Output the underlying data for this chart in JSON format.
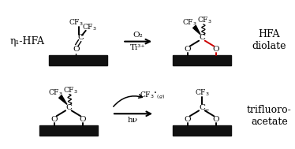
{
  "bg_color": "#ffffff",
  "black_surface_color": "#111111",
  "label_eta1_hfa": "η₁-HFA",
  "label_hfa_diolate": "HFA\ndiolate",
  "label_trifluoro": "trifluoro-\nacetate",
  "arrow1_label_top": "O₂",
  "arrow1_label_bot": "Ti³⁺",
  "arrow2_label_bot": "hν",
  "red_color": "#cc0000",
  "font_size_main": 7.5,
  "font_size_small": 6.5,
  "font_size_label": 9
}
